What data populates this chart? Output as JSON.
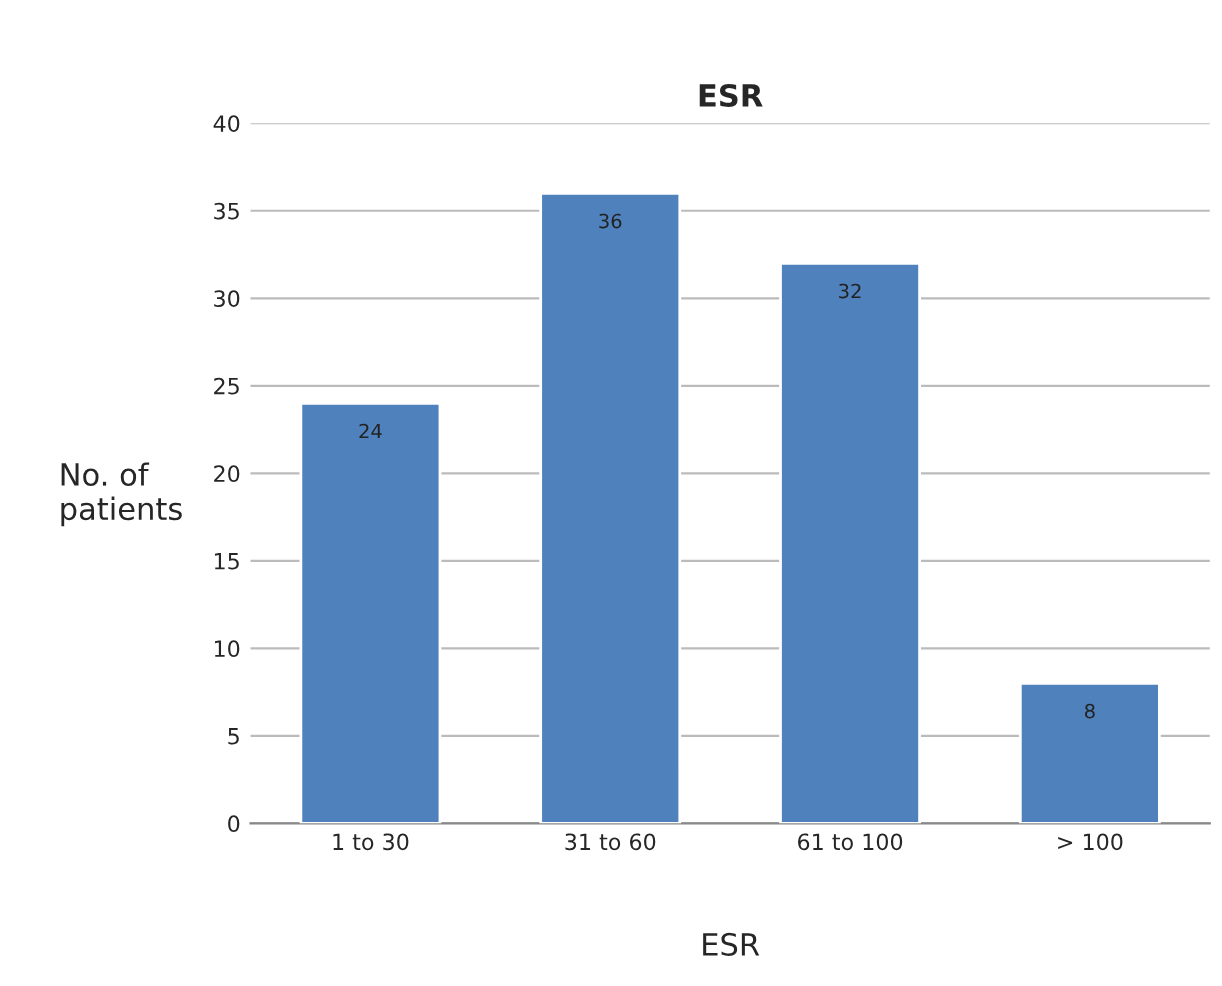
{
  "chart_data": {
    "type": "bar",
    "title": "ESR",
    "xlabel": "ESR",
    "ylabel": "No. of\npatients",
    "categories": [
      "1 to 30",
      "31 to 60",
      "61 to 100",
      "> 100"
    ],
    "values": [
      24,
      36,
      32,
      8
    ],
    "color": "#4f81bd",
    "ylim": [
      0,
      40
    ],
    "yticks": [
      0,
      5,
      10,
      15,
      20,
      25,
      30,
      35,
      40
    ],
    "grid": "y",
    "data_labels": true
  }
}
